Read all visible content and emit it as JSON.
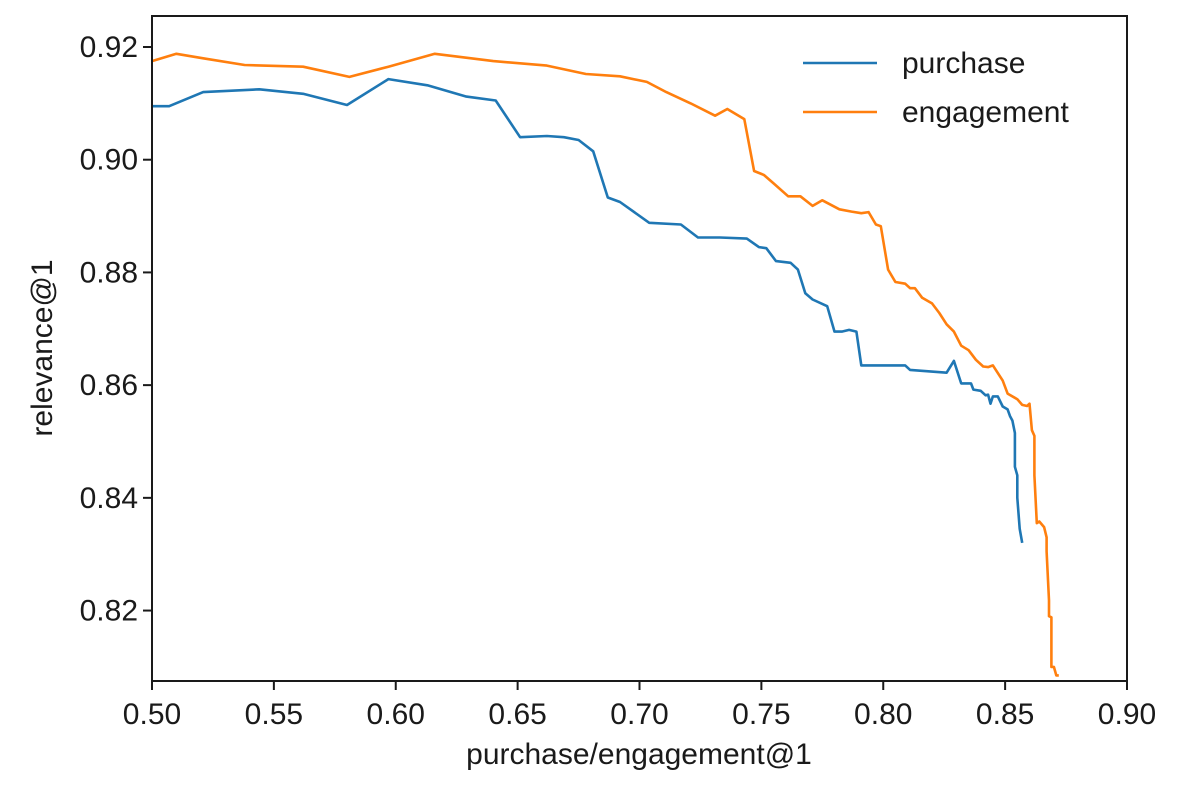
{
  "chart_data": {
    "type": "line",
    "title": "",
    "xlabel": "purchase/engagement@1",
    "ylabel": "relevance@1",
    "xlim": [
      0.5,
      0.9
    ],
    "ylim": [
      0.8075,
      0.9255
    ],
    "xticks": [
      0.5,
      0.55,
      0.6,
      0.65,
      0.7,
      0.75,
      0.8,
      0.85,
      0.9
    ],
    "xtick_labels": [
      "0.50",
      "0.55",
      "0.60",
      "0.65",
      "0.70",
      "0.75",
      "0.80",
      "0.85",
      "0.90"
    ],
    "yticks": [
      0.82,
      0.84,
      0.86,
      0.88,
      0.9,
      0.92
    ],
    "ytick_labels": [
      "0.82",
      "0.84",
      "0.86",
      "0.88",
      "0.90",
      "0.92"
    ],
    "grid": false,
    "legend": "top-right",
    "series": [
      {
        "name": "purchase",
        "color": "#1f77b4",
        "points": [
          [
            0.5,
            0.9095
          ],
          [
            0.507,
            0.9095
          ],
          [
            0.521,
            0.912
          ],
          [
            0.544,
            0.9125
          ],
          [
            0.562,
            0.9117
          ],
          [
            0.58,
            0.9097
          ],
          [
            0.597,
            0.9143
          ],
          [
            0.613,
            0.9132
          ],
          [
            0.629,
            0.9112
          ],
          [
            0.641,
            0.9105
          ],
          [
            0.651,
            0.904
          ],
          [
            0.662,
            0.9042
          ],
          [
            0.669,
            0.904
          ],
          [
            0.675,
            0.9035
          ],
          [
            0.681,
            0.9015
          ],
          [
            0.687,
            0.8933
          ],
          [
            0.692,
            0.8925
          ],
          [
            0.704,
            0.8888
          ],
          [
            0.717,
            0.8885
          ],
          [
            0.724,
            0.8862
          ],
          [
            0.733,
            0.8862
          ],
          [
            0.744,
            0.886
          ],
          [
            0.749,
            0.8845
          ],
          [
            0.752,
            0.8843
          ],
          [
            0.756,
            0.882
          ],
          [
            0.762,
            0.8817
          ],
          [
            0.765,
            0.8805
          ],
          [
            0.768,
            0.8763
          ],
          [
            0.771,
            0.8752
          ],
          [
            0.777,
            0.874
          ],
          [
            0.78,
            0.8695
          ],
          [
            0.783,
            0.8695
          ],
          [
            0.786,
            0.8698
          ],
          [
            0.789,
            0.8695
          ],
          [
            0.791,
            0.8635
          ],
          [
            0.809,
            0.8635
          ],
          [
            0.811,
            0.8627
          ],
          [
            0.826,
            0.8622
          ],
          [
            0.829,
            0.8643
          ],
          [
            0.832,
            0.8603
          ],
          [
            0.836,
            0.8603
          ],
          [
            0.837,
            0.8592
          ],
          [
            0.84,
            0.859
          ],
          [
            0.842,
            0.8582
          ],
          [
            0.843,
            0.8583
          ],
          [
            0.844,
            0.8567
          ],
          [
            0.845,
            0.858
          ],
          [
            0.847,
            0.858
          ],
          [
            0.849,
            0.8562
          ],
          [
            0.851,
            0.8557
          ],
          [
            0.852,
            0.8545
          ],
          [
            0.853,
            0.8537
          ],
          [
            0.854,
            0.8515
          ],
          [
            0.854,
            0.8455
          ],
          [
            0.855,
            0.844
          ],
          [
            0.855,
            0.84
          ],
          [
            0.856,
            0.8345
          ],
          [
            0.857,
            0.832
          ]
        ]
      },
      {
        "name": "engagement",
        "color": "#ff7f0e",
        "points": [
          [
            0.5,
            0.9175
          ],
          [
            0.51,
            0.9188
          ],
          [
            0.521,
            0.918
          ],
          [
            0.538,
            0.9168
          ],
          [
            0.562,
            0.9165
          ],
          [
            0.581,
            0.9147
          ],
          [
            0.597,
            0.9165
          ],
          [
            0.616,
            0.9188
          ],
          [
            0.64,
            0.9175
          ],
          [
            0.662,
            0.9167
          ],
          [
            0.678,
            0.9152
          ],
          [
            0.692,
            0.9148
          ],
          [
            0.703,
            0.9138
          ],
          [
            0.711,
            0.912
          ],
          [
            0.721,
            0.91
          ],
          [
            0.731,
            0.9078
          ],
          [
            0.736,
            0.909
          ],
          [
            0.743,
            0.9072
          ],
          [
            0.747,
            0.898
          ],
          [
            0.751,
            0.8973
          ],
          [
            0.755,
            0.8958
          ],
          [
            0.761,
            0.8935
          ],
          [
            0.766,
            0.8935
          ],
          [
            0.771,
            0.8918
          ],
          [
            0.775,
            0.8928
          ],
          [
            0.782,
            0.8912
          ],
          [
            0.787,
            0.8908
          ],
          [
            0.791,
            0.8905
          ],
          [
            0.794,
            0.8907
          ],
          [
            0.797,
            0.8885
          ],
          [
            0.799,
            0.8882
          ],
          [
            0.802,
            0.8805
          ],
          [
            0.805,
            0.8783
          ],
          [
            0.809,
            0.878
          ],
          [
            0.811,
            0.8772
          ],
          [
            0.813,
            0.8772
          ],
          [
            0.816,
            0.8755
          ],
          [
            0.82,
            0.8745
          ],
          [
            0.823,
            0.8728
          ],
          [
            0.826,
            0.8708
          ],
          [
            0.829,
            0.8695
          ],
          [
            0.832,
            0.867
          ],
          [
            0.835,
            0.8662
          ],
          [
            0.838,
            0.8645
          ],
          [
            0.841,
            0.8633
          ],
          [
            0.843,
            0.8632
          ],
          [
            0.845,
            0.8635
          ],
          [
            0.849,
            0.8608
          ],
          [
            0.851,
            0.8585
          ],
          [
            0.855,
            0.8575
          ],
          [
            0.857,
            0.8565
          ],
          [
            0.859,
            0.8563
          ],
          [
            0.86,
            0.8567
          ],
          [
            0.861,
            0.852
          ],
          [
            0.862,
            0.851
          ],
          [
            0.862,
            0.844
          ],
          [
            0.863,
            0.8355
          ],
          [
            0.864,
            0.8358
          ],
          [
            0.866,
            0.8348
          ],
          [
            0.867,
            0.833
          ],
          [
            0.867,
            0.8305
          ],
          [
            0.868,
            0.8218
          ],
          [
            0.868,
            0.819
          ],
          [
            0.869,
            0.8188
          ],
          [
            0.869,
            0.81
          ],
          [
            0.87,
            0.81
          ],
          [
            0.871,
            0.8085
          ],
          [
            0.872,
            0.8085
          ]
        ]
      }
    ]
  }
}
